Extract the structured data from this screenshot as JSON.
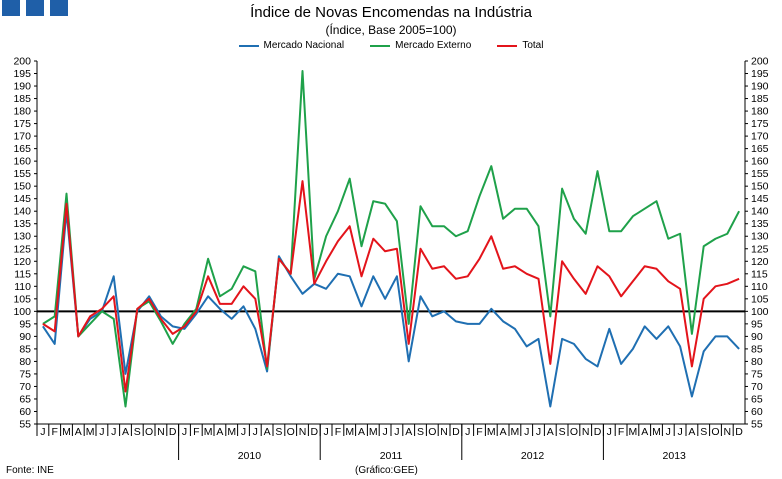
{
  "header": {
    "title": "Índice de Novas Encomendas na Indústria",
    "subtitle": "(Índice, Base 2005=100)"
  },
  "footer": {
    "source": "Fonte: INE",
    "credit": "(Gráfico:GEE)"
  },
  "colors": {
    "corner": "#1f5fa8",
    "nacional": "#1f6fb2",
    "externo": "#1fa14a",
    "total": "#e3141b",
    "baseline": "#000000"
  },
  "chart_data": {
    "type": "line",
    "title": "Índice de Novas Encomendas na Indústria",
    "subtitle": "(Índice, Base 2005=100)",
    "ylim": [
      55,
      200
    ],
    "ytick_step": 5,
    "reference_line": 100,
    "grid": false,
    "legend_position": "top-center",
    "years": [
      {
        "label": "",
        "start": 0
      },
      {
        "label": "2010",
        "start": 12
      },
      {
        "label": "2011",
        "start": 24
      },
      {
        "label": "2012",
        "start": 36
      },
      {
        "label": "2013",
        "start": 48
      }
    ],
    "month_letters": [
      "J",
      "F",
      "M",
      "A",
      "M",
      "J",
      "J",
      "A",
      "S",
      "O",
      "N",
      "D"
    ],
    "series": [
      {
        "name": "Mercado Nacional",
        "color": "#1f6fb2",
        "values": [
          94,
          87,
          140,
          90,
          97,
          100,
          114,
          75,
          100,
          106,
          98,
          94,
          93,
          99,
          106,
          101,
          97,
          102,
          93,
          76,
          122,
          114,
          107,
          111,
          109,
          115,
          114,
          102,
          114,
          105,
          114,
          80,
          106,
          98,
          100,
          96,
          95,
          95,
          101,
          96,
          93,
          86,
          89,
          62,
          89,
          87,
          81,
          78,
          93,
          79,
          85,
          94,
          89,
          94,
          86,
          66,
          84,
          90,
          90,
          85
        ]
      },
      {
        "name": "Mercado Externo",
        "color": "#1fa14a",
        "values": [
          95,
          98,
          147,
          90,
          95,
          100,
          97,
          62,
          101,
          104,
          96,
          87,
          95,
          101,
          121,
          106,
          109,
          118,
          116,
          77,
          121,
          115,
          196,
          113,
          130,
          140,
          153,
          126,
          144,
          143,
          136,
          95,
          142,
          134,
          134,
          130,
          132,
          146,
          158,
          137,
          141,
          141,
          134,
          98,
          149,
          137,
          131,
          156,
          132,
          132,
          138,
          141,
          144,
          129,
          131,
          91,
          126,
          129,
          131,
          140
        ]
      },
      {
        "name": "Total",
        "color": "#e3141b",
        "values": [
          95,
          92,
          143,
          90,
          98,
          101,
          106,
          68,
          101,
          105,
          97,
          91,
          94,
          100,
          114,
          103,
          103,
          110,
          105,
          78,
          121,
          115,
          152,
          111,
          120,
          128,
          134,
          114,
          129,
          124,
          125,
          87,
          125,
          117,
          118,
          113,
          114,
          121,
          130,
          117,
          118,
          115,
          113,
          79,
          120,
          113,
          107,
          118,
          114,
          106,
          112,
          118,
          117,
          112,
          109,
          78,
          105,
          110,
          111,
          113
        ]
      }
    ]
  }
}
